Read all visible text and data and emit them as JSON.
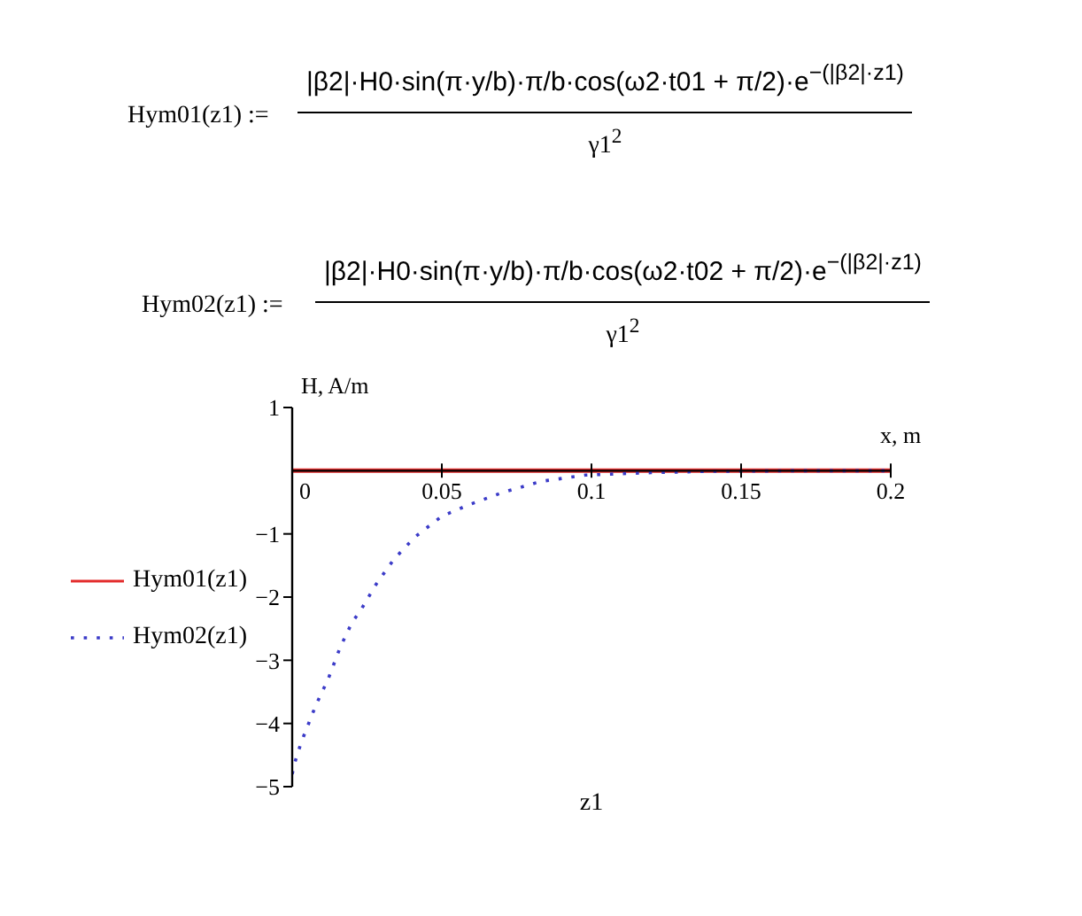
{
  "chart_data": {
    "type": "line",
    "xlabel": "x, m",
    "ylabel": "H, A/m",
    "annotations": [
      "Hym01(z1) :=",
      "|β2|·H0·sin(π·y/b)·π/b·cos(ω2·t01 + π/2)·e$^{−(|β2|·z1)}$",
      "γ1$^{2}$",
      "Hym02(z1) :=",
      "|β2|·H0·sin(π·y/b)·π/b·cos(ω2·t02 + π/2)·e$^{−(|β2|·z1)}$",
      "γ1$^{2}$",
      "z1"
    ],
    "xlim": [
      0,
      0.2
    ],
    "xticks": [
      0,
      0.05,
      0.1,
      0.15,
      0.2
    ],
    "ylim": [
      -5,
      1
    ],
    "yticks": [
      -5,
      -4,
      -3,
      -2,
      -1,
      1
    ],
    "legend": "left",
    "line_style": "solid",
    "series": [
      {
        "name": "Hym01(z1)",
        "color": "#e32b2b",
        "x": [
          0,
          0.2
        ],
        "values": [
          0,
          0
        ]
      },
      {
        "name": "Hym02(z1)",
        "color": "#3b3bc8",
        "line_style": "dotted",
        "x": [
          0,
          0.001,
          0.003,
          0.008,
          0.012,
          0.016,
          0.02,
          0.023,
          0.028,
          0.034,
          0.041,
          0.05,
          0.059,
          0.07,
          0.083,
          0.098,
          0.12,
          0.14,
          0.17,
          0.2
        ],
        "values": [
          -4.8,
          -4.6,
          -4.3,
          -3.7,
          -3.3,
          -2.8,
          -2.4,
          -2.2,
          -1.8,
          -1.4,
          -1.05,
          -0.72,
          -0.54,
          -0.35,
          -0.17,
          -0.07,
          -0.03,
          -0.01,
          0,
          0
        ]
      }
    ]
  }
}
